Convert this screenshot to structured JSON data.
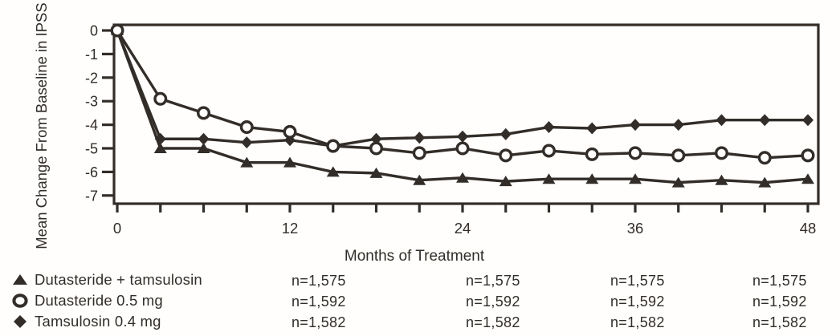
{
  "figure": {
    "ink_color": "#322d28",
    "background_color": "#fffefd"
  },
  "chart_data": {
    "type": "line",
    "title": "",
    "xlabel": "Months of Treatment",
    "ylabel": "Mean Change From Baseline in IPSS",
    "xlim": [
      0,
      48
    ],
    "ylim": [
      -7.4,
      0.3
    ],
    "grid": false,
    "legend_position": "bottom-left",
    "x": [
      0,
      3,
      6,
      9,
      12,
      15,
      18,
      21,
      24,
      27,
      30,
      33,
      36,
      39,
      42,
      45,
      48
    ],
    "x_major_ticks": [
      0,
      12,
      24,
      36,
      48
    ],
    "x_major_tick_labels": [
      "0",
      "12",
      "24",
      "36",
      "48"
    ],
    "x_minor_tick_step": 3,
    "y_ticks": [
      0,
      -1,
      -2,
      -3,
      -4,
      -5,
      -6,
      -7
    ],
    "y_tick_labels": [
      "0",
      "-1",
      "-2",
      "-3",
      "-4",
      "-5",
      "-6",
      "-7"
    ],
    "series": [
      {
        "name": "Dutasteride + tamsulosin",
        "marker": "triangle",
        "values": [
          0,
          -5.0,
          -5.0,
          -5.6,
          -5.6,
          -6.0,
          -6.05,
          -6.35,
          -6.25,
          -6.4,
          -6.3,
          -6.3,
          -6.3,
          -6.45,
          -6.35,
          -6.45,
          -6.3
        ]
      },
      {
        "name": "Dutasteride 0.5 mg",
        "marker": "circle",
        "values": [
          0,
          -2.9,
          -3.5,
          -4.1,
          -4.3,
          -4.9,
          -5.0,
          -5.2,
          -5.0,
          -5.3,
          -5.1,
          -5.25,
          -5.2,
          -5.3,
          -5.2,
          -5.4,
          -5.3
        ]
      },
      {
        "name": "Tamsulosin 0.4 mg",
        "marker": "diamond",
        "values": [
          0,
          -4.6,
          -4.6,
          -4.75,
          -4.65,
          -4.9,
          -4.6,
          -4.55,
          -4.5,
          -4.4,
          -4.1,
          -4.15,
          -4.0,
          -4.0,
          -3.8,
          -3.8,
          -3.8
        ]
      }
    ]
  },
  "legend": {
    "items": [
      {
        "label": "Dutasteride + tamsulosin",
        "marker": "triangle"
      },
      {
        "label": "Dutasteride 0.5 mg",
        "marker": "circle"
      },
      {
        "label": "Tamsulosin 0.4 mg",
        "marker": "diamond"
      }
    ]
  },
  "sample_sizes": {
    "rows": [
      {
        "series": "Dutasteride + tamsulosin",
        "values": [
          "n=1,575",
          "n=1,575",
          "n=1,575",
          "n=1,575"
        ]
      },
      {
        "series": "Dutasteride 0.5 mg",
        "values": [
          "n=1,592",
          "n=1,592",
          "n=1,592",
          "n=1,592"
        ]
      },
      {
        "series": "Tamsulosin 0.4 mg",
        "values": [
          "n=1,582",
          "n=1,582",
          "n=1,582",
          "n=1,582"
        ]
      }
    ]
  }
}
